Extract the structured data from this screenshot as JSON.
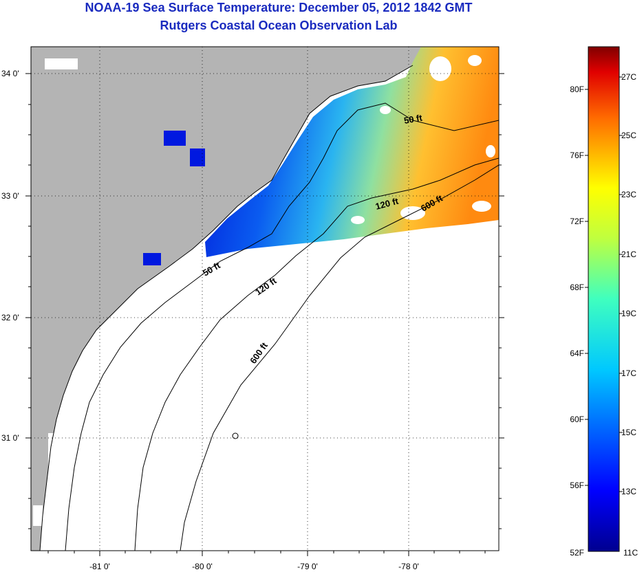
{
  "title": "NOAA-19 Sea Surface Temperature:  December 05, 2012 1842 GMT",
  "subtitle": "Rutgers Coastal Ocean Observation Lab",
  "colors": {
    "land": "#b4b4b4",
    "water_nodata": "#ffffff",
    "title": "#1a2bbf",
    "contour": "#000000"
  },
  "map": {
    "lat_labels": [
      "34 0'",
      "33 0'",
      "32 0'",
      "31 0'"
    ],
    "lon_labels": [
      "-81 0'",
      "-80 0'",
      "-79 0'",
      "-78 0'"
    ],
    "contour_labels": [
      "50 ft",
      "120 ft",
      "600 ft",
      "50 ft",
      "120 ft",
      "600 ft"
    ]
  },
  "legend": {
    "fahrenheit": [
      "80F",
      "76F",
      "72F",
      "68F",
      "64F",
      "60F",
      "56F",
      "52F"
    ],
    "celsius": [
      "27C",
      "25C",
      "23C",
      "21C",
      "19C",
      "17C",
      "15C",
      "13C",
      "11C"
    ],
    "min_label": "52F",
    "min_c_label": "11C"
  }
}
